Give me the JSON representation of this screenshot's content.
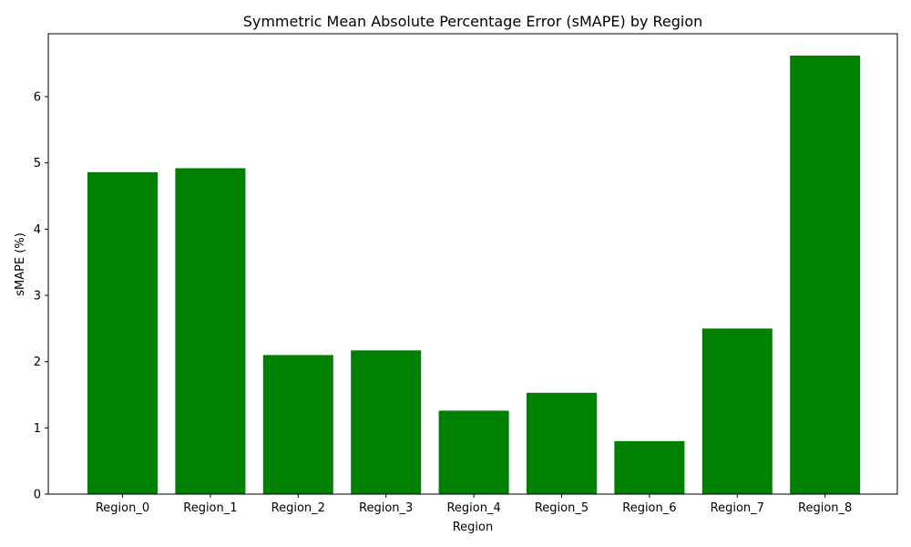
{
  "chart_data": {
    "type": "bar",
    "title": "Symmetric Mean Absolute Percentage Error (sMAPE) by Region",
    "xlabel": "Region",
    "ylabel": "sMAPE (%)",
    "categories": [
      "Region_0",
      "Region_1",
      "Region_2",
      "Region_3",
      "Region_4",
      "Region_5",
      "Region_6",
      "Region_7",
      "Region_8"
    ],
    "values": [
      4.86,
      4.92,
      2.1,
      2.17,
      1.26,
      1.53,
      0.8,
      2.5,
      6.62
    ],
    "ylim": [
      0,
      6.95
    ],
    "yticks": [
      "0",
      "1",
      "2",
      "3",
      "4",
      "5",
      "6"
    ],
    "bar_color": "#008000",
    "grid": false,
    "legend": "none"
  }
}
